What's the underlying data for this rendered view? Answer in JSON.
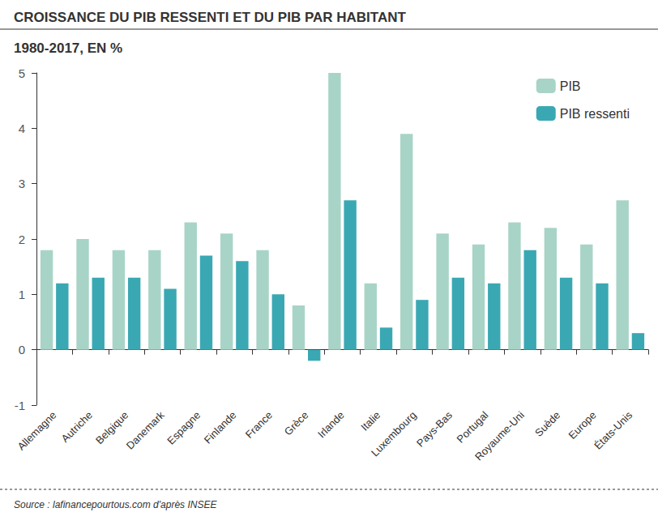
{
  "chart_data": {
    "type": "bar",
    "title": "CROISSANCE DU PIB RESSENTI ET DU PIB PAR HABITANT",
    "subtitle": "1980-2017, EN %",
    "source": "Source : lafinancepourtous.com d'après INSEE",
    "categories": [
      "Allemagne",
      "Autriche",
      "Belgique",
      "Danemark",
      "Espagne",
      "Finlande",
      "France",
      "Grèce",
      "Irlande",
      "Italie",
      "Luxembourg",
      "Pays-Bas",
      "Portugal",
      "Royaume-Uni",
      "Suède",
      "Europe",
      "États-Unis"
    ],
    "series": [
      {
        "name": "PIB",
        "color": "#a8d4c7",
        "values": [
          1.8,
          2.0,
          1.8,
          1.8,
          2.3,
          2.1,
          1.8,
          0.8,
          5.0,
          1.2,
          3.9,
          2.1,
          1.9,
          2.3,
          2.2,
          1.9,
          2.7
        ]
      },
      {
        "name": "PIB ressenti",
        "color": "#3aa8b3",
        "values": [
          1.2,
          1.3,
          1.3,
          1.1,
          1.7,
          1.6,
          1.0,
          -0.2,
          2.7,
          0.4,
          0.9,
          1.3,
          1.2,
          1.8,
          1.3,
          1.2,
          0.3
        ]
      }
    ],
    "ylim": [
      -1,
      5
    ],
    "yticks": [
      -1,
      0,
      1,
      2,
      3,
      4,
      5
    ],
    "grid": false,
    "legend": "top-right"
  }
}
